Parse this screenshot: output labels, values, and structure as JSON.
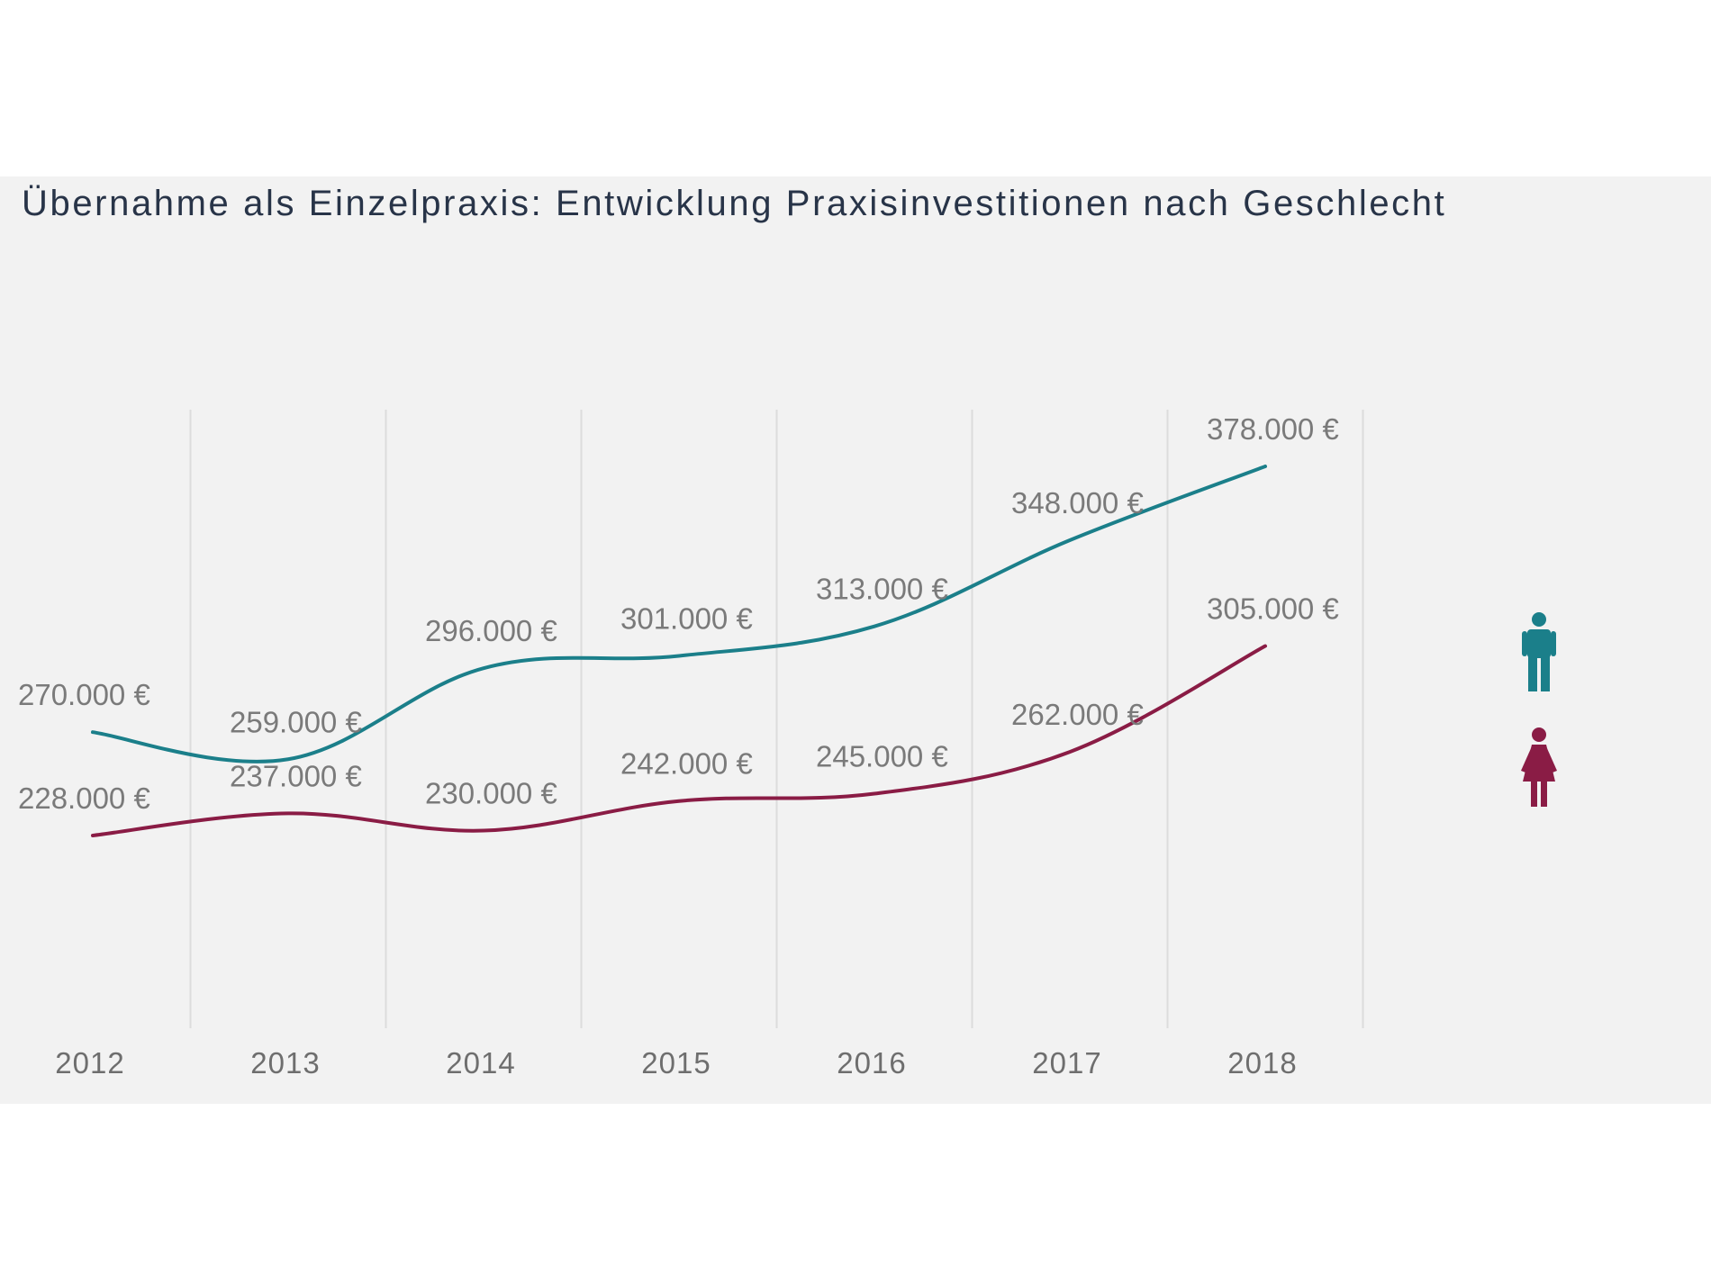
{
  "chart_data": {
    "type": "line",
    "title": "Übernahme als Einzelpraxis: Entwicklung Praxisinvestitionen nach Geschlecht",
    "xlabel": "",
    "ylabel": "",
    "categories": [
      "2012",
      "2013",
      "2014",
      "2015",
      "2016",
      "2017",
      "2018"
    ],
    "ylim": [
      150000,
      400000
    ],
    "grid": "vertical",
    "legend": "right (icons)",
    "series": [
      {
        "name": "Männer",
        "icon": "male-figure-icon",
        "color": "#1b7f8a",
        "values": [
          270000,
          259000,
          296000,
          301000,
          313000,
          348000,
          378000
        ],
        "labels": [
          "270.000 €",
          "259.000 €",
          "296.000 €",
          "301.000 €",
          "313.000 €",
          "348.000 €",
          "378.000 €"
        ]
      },
      {
        "name": "Frauen",
        "icon": "female-figure-icon",
        "color": "#8a1c45",
        "values": [
          228000,
          237000,
          230000,
          242000,
          245000,
          262000,
          305000
        ],
        "labels": [
          "228.000 €",
          "237.000 €",
          "230.000 €",
          "242.000 €",
          "245.000 €",
          "262.000 €",
          "305.000 €"
        ]
      }
    ]
  }
}
